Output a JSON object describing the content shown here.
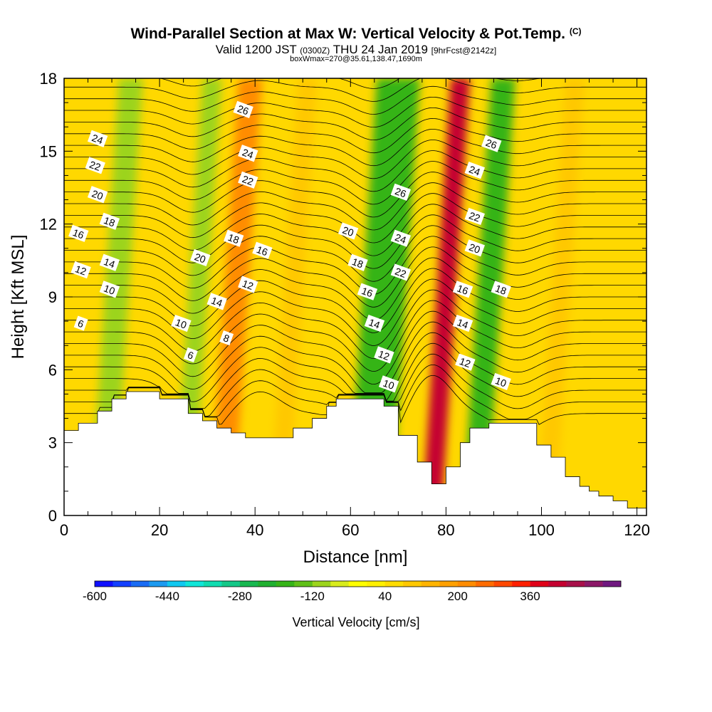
{
  "title": "Wind-Parallel Section at Max W: Vertical Velocity & Pot.Temp.",
  "copyright": "(C)",
  "subtitle": {
    "valid": "Valid 1200 JST",
    "utc": "(0300Z)",
    "date": "THU 24 Jan 2019",
    "forecast": "[9hrFcst@2142z]"
  },
  "subtitle2": "boxWmax=270@35.61,138.47,1690m",
  "chart_data": {
    "type": "contour-section",
    "xlabel": "Distance [nm]",
    "ylabel": "Height [Kft MSL]",
    "xlim": [
      0,
      122
    ],
    "ylim": [
      0,
      18
    ],
    "x_ticks": [
      "0",
      "20",
      "40",
      "60",
      "80",
      "100",
      "120"
    ],
    "y_ticks": [
      "0",
      "3",
      "6",
      "9",
      "12",
      "15",
      "18"
    ],
    "colorbar": {
      "label": "Vertical Velocity [cm/s]",
      "tick_labels": [
        "-600",
        "-440",
        "-280",
        "-120",
        "40",
        "200",
        "360"
      ],
      "min": -600,
      "step": 40,
      "colors": [
        "#1010ff",
        "#1440ff",
        "#1a6cf4",
        "#1c9af0",
        "#10c8f0",
        "#10e6d8",
        "#10dcb0",
        "#14c888",
        "#18b850",
        "#20b030",
        "#36b418",
        "#60c018",
        "#9cd41c",
        "#d8ec1c",
        "#ffff00",
        "#fff000",
        "#ffdc00",
        "#ffc800",
        "#ffb400",
        "#ffa000",
        "#ff8c00",
        "#ff6c00",
        "#ff4800",
        "#ff2000",
        "#e00018",
        "#c40030",
        "#a8104a",
        "#8c1868",
        "#701880"
      ]
    },
    "terrain_profile": {
      "x": [
        0,
        3,
        3,
        7,
        7,
        10,
        10,
        13,
        13,
        20,
        20,
        26,
        26,
        29,
        29,
        32,
        32,
        35,
        35,
        38,
        38,
        48,
        48,
        52,
        52,
        55,
        55,
        57,
        57,
        67,
        67,
        70,
        70,
        74,
        74,
        77,
        77,
        80,
        80,
        83,
        83,
        85,
        85,
        89,
        89,
        99,
        99,
        102,
        102,
        105,
        105,
        108,
        108,
        110,
        110,
        112,
        112,
        115,
        115,
        118,
        118,
        122
      ],
      "y": [
        3.5,
        3.5,
        3.8,
        3.8,
        4.3,
        4.3,
        4.8,
        4.8,
        5.1,
        5.1,
        4.8,
        4.8,
        4.2,
        4.2,
        3.9,
        3.9,
        3.6,
        3.6,
        3.4,
        3.4,
        3.2,
        3.2,
        3.6,
        3.6,
        4.0,
        4.0,
        4.5,
        4.5,
        4.8,
        4.8,
        4.5,
        4.5,
        3.3,
        3.3,
        2.2,
        2.2,
        1.3,
        1.3,
        2.0,
        2.0,
        3.0,
        3.0,
        3.6,
        3.6,
        3.8,
        3.8,
        2.9,
        2.9,
        2.4,
        2.4,
        1.6,
        1.6,
        1.2,
        1.2,
        1.0,
        1.0,
        0.8,
        0.8,
        0.6,
        0.6,
        0.3,
        0.3
      ]
    },
    "velocity_bands": [
      {
        "x": 8,
        "width": 5,
        "w": -120
      },
      {
        "x": 25,
        "width": 4,
        "w": -120
      },
      {
        "x": 33,
        "width": 5,
        "w": 200
      },
      {
        "x": 45,
        "width": 4,
        "w": 80
      },
      {
        "x": 64,
        "width": 9,
        "w": -200
      },
      {
        "x": 77,
        "width": 4,
        "w": 400
      },
      {
        "x": 86,
        "width": 5,
        "w": -180
      },
      {
        "x": 101,
        "width": 4,
        "w": 100
      }
    ],
    "isentrope_values": [
      6,
      8,
      10,
      12,
      14,
      16,
      18,
      20,
      22,
      24,
      26
    ],
    "contour_labels": [
      {
        "text": "24",
        "x": 7,
        "y": 15.5
      },
      {
        "text": "22",
        "x": 6.5,
        "y": 14.4
      },
      {
        "text": "20",
        "x": 7,
        "y": 13.2
      },
      {
        "text": "18",
        "x": 9.5,
        "y": 12.1
      },
      {
        "text": "16",
        "x": 3,
        "y": 11.6
      },
      {
        "text": "14",
        "x": 9.5,
        "y": 10.4
      },
      {
        "text": "12",
        "x": 3.5,
        "y": 10.1
      },
      {
        "text": "10",
        "x": 9.5,
        "y": 9.3
      },
      {
        "text": "6",
        "x": 3.5,
        "y": 7.9
      },
      {
        "text": "26",
        "x": 37.5,
        "y": 16.7
      },
      {
        "text": "24",
        "x": 38.5,
        "y": 14.9
      },
      {
        "text": "22",
        "x": 38.5,
        "y": 13.8
      },
      {
        "text": "20",
        "x": 28.5,
        "y": 10.6
      },
      {
        "text": "18",
        "x": 35.5,
        "y": 11.4
      },
      {
        "text": "16",
        "x": 41.5,
        "y": 10.9
      },
      {
        "text": "12",
        "x": 38.5,
        "y": 9.5
      },
      {
        "text": "14",
        "x": 32,
        "y": 8.8
      },
      {
        "text": "10",
        "x": 24.5,
        "y": 7.9
      },
      {
        "text": "8",
        "x": 34,
        "y": 7.3
      },
      {
        "text": "6",
        "x": 26.5,
        "y": 6.6
      },
      {
        "text": "26",
        "x": 70.5,
        "y": 13.3
      },
      {
        "text": "24",
        "x": 70.5,
        "y": 11.4
      },
      {
        "text": "22",
        "x": 70.5,
        "y": 10
      },
      {
        "text": "20",
        "x": 59.5,
        "y": 11.7
      },
      {
        "text": "18",
        "x": 61.5,
        "y": 10.4
      },
      {
        "text": "16",
        "x": 63.5,
        "y": 9.2
      },
      {
        "text": "14",
        "x": 65,
        "y": 7.9
      },
      {
        "text": "12",
        "x": 67,
        "y": 6.6
      },
      {
        "text": "10",
        "x": 68,
        "y": 5.4
      },
      {
        "text": "26",
        "x": 89.5,
        "y": 15.3
      },
      {
        "text": "24",
        "x": 86,
        "y": 14.2
      },
      {
        "text": "22",
        "x": 86,
        "y": 12.3
      },
      {
        "text": "20",
        "x": 86,
        "y": 11
      },
      {
        "text": "18",
        "x": 91.5,
        "y": 9.3
      },
      {
        "text": "16",
        "x": 83.5,
        "y": 9.3
      },
      {
        "text": "14",
        "x": 83.5,
        "y": 7.9
      },
      {
        "text": "12",
        "x": 84,
        "y": 6.3
      },
      {
        "text": "10",
        "x": 91.5,
        "y": 5.5
      }
    ]
  }
}
